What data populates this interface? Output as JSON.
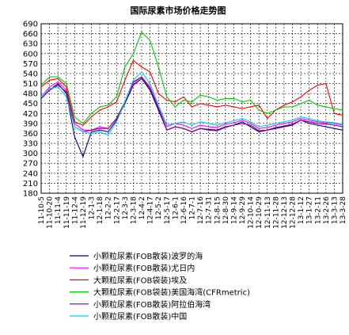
{
  "chart_data": {
    "type": "line",
    "title": "国际尿素市场价格走势图",
    "xlabel": "",
    "ylabel": "",
    "ylim": [
      180,
      690
    ],
    "yticks": [
      180,
      210,
      240,
      270,
      300,
      330,
      360,
      390,
      420,
      450,
      480,
      510,
      540,
      570,
      600,
      630,
      660,
      690
    ],
    "grid": true,
    "legend_position": "bottom",
    "categories": [
      "11-10-5",
      "11-10-20",
      "11-11-4",
      "11-11-19",
      "11-12-4",
      "11-12-19",
      "12-1-3",
      "12-1-18",
      "12-2-2",
      "12-2-17",
      "12-3-3",
      "12-3-18",
      "12-4-2",
      "12-4-17",
      "12-5-2",
      "12-5-17",
      "12-6-1",
      "12-6-16",
      "12-7-1",
      "12-7-16",
      "12-7-31",
      "12-8-15",
      "12-8-30",
      "12-9-14",
      "12-9-29",
      "12-10-14",
      "12-10-29",
      "12-11-13",
      "12-11-28",
      "12-12-13",
      "12-12-28",
      "13-1-12",
      "13-1-27",
      "13-2-11",
      "13-2-26",
      "13-3-13",
      "13-3-28"
    ],
    "series": [
      {
        "name": "小颗粒尿素(FOB散装)波罗的海",
        "color": "#000080",
        "values": [
          465,
          490,
          510,
          480,
          350,
          290,
          365,
          370,
          365,
          400,
          450,
          505,
          525,
          490,
          430,
          370,
          380,
          375,
          365,
          375,
          372,
          370,
          380,
          385,
          395,
          380,
          365,
          370,
          375,
          380,
          385,
          400,
          390,
          385,
          380,
          375,
          370
        ]
      },
      {
        "name": "小颗粒尿素(FOB散装)尤日内",
        "color": "#ff00ff",
        "values": [
          470,
          500,
          515,
          490,
          390,
          370,
          370,
          380,
          375,
          405,
          455,
          510,
          530,
          500,
          440,
          380,
          390,
          385,
          375,
          385,
          380,
          378,
          388,
          392,
          400,
          390,
          375,
          378,
          385,
          390,
          395,
          405,
          400,
          395,
          392,
          390,
          385
        ]
      },
      {
        "name": "大颗粒尿素(FOB袋装)埃及",
        "color": "#ff0000",
        "values": [
          500,
          520,
          525,
          500,
          395,
          385,
          410,
          430,
          440,
          455,
          520,
          580,
          560,
          545,
          480,
          460,
          455,
          470,
          440,
          450,
          445,
          440,
          445,
          440,
          435,
          440,
          445,
          405,
          430,
          445,
          455,
          470,
          490,
          505,
          510,
          420,
          415
        ]
      },
      {
        "name": "大颗粒尿素(FOB袋装)美国海湾(CFRmetric)",
        "color": "#00cc00",
        "values": [
          505,
          530,
          530,
          510,
          410,
          390,
          420,
          440,
          445,
          470,
          560,
          600,
          665,
          640,
          560,
          470,
          440,
          460,
          455,
          475,
          470,
          460,
          465,
          465,
          455,
          460,
          430,
          420,
          430,
          440,
          440,
          450,
          460,
          445,
          440,
          435,
          430
        ]
      },
      {
        "name": "小颗粒尿素(FOB散装)阿拉伯海湾",
        "color": "#800080",
        "values": [
          465,
          490,
          505,
          485,
          380,
          365,
          370,
          375,
          375,
          405,
          455,
          515,
          530,
          495,
          435,
          370,
          380,
          375,
          365,
          375,
          370,
          368,
          378,
          385,
          390,
          385,
          368,
          370,
          378,
          382,
          388,
          400,
          395,
          390,
          388,
          385,
          380
        ]
      },
      {
        "name": "小颗粒尿素(FOB散装)中国",
        "color": "#00ccff",
        "values": [
          470,
          495,
          500,
          470,
          380,
          365,
          360,
          365,
          355,
          395,
          455,
          520,
          545,
          510,
          445,
          385,
          390,
          395,
          385,
          395,
          390,
          385,
          392,
          398,
          405,
          395,
          380,
          385,
          390,
          395,
          400,
          410,
          405,
          398,
          395,
          392,
          388
        ]
      }
    ]
  }
}
